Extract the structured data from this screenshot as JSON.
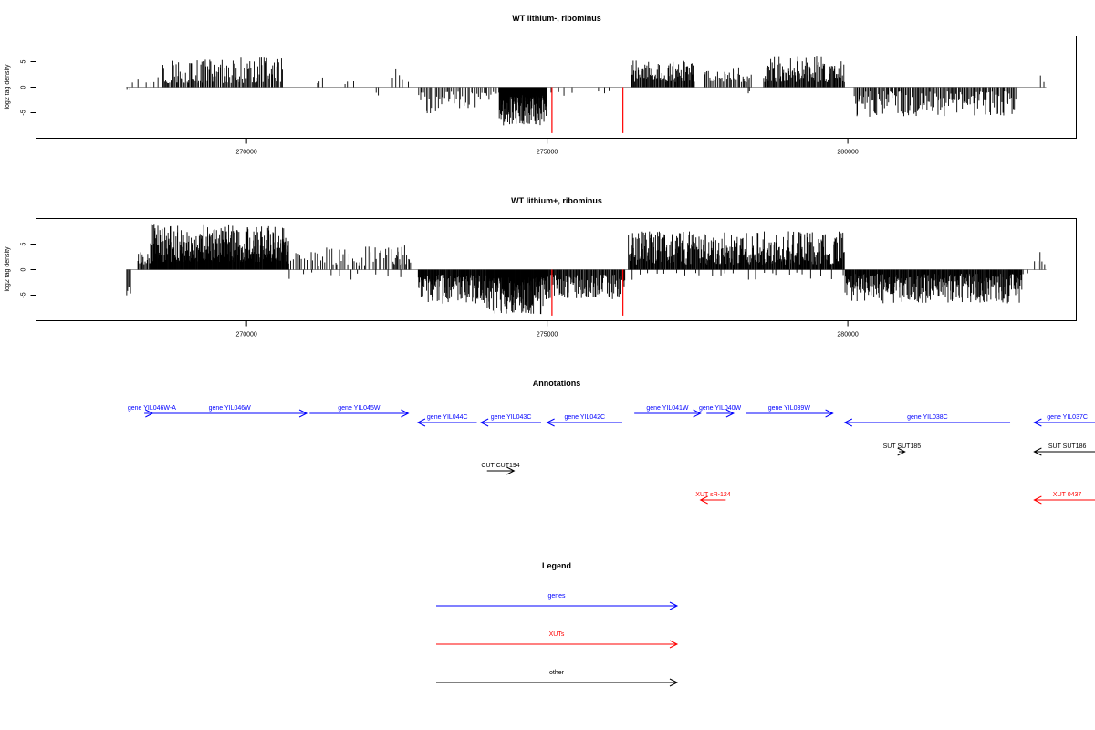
{
  "chart_data": [
    {
      "type": "bar",
      "title": "WT lithium-, ribominus",
      "xlabel": "",
      "ylabel": "log2 tag density",
      "xlim": [
        266500,
        283800
      ],
      "ylim": [
        -10,
        10
      ],
      "xticks": [
        {
          "value": 270000,
          "label": "270000"
        },
        {
          "value": 275000,
          "label": "275000"
        },
        {
          "value": 280000,
          "label": "280000"
        }
      ],
      "yticks": [
        {
          "value": -5,
          "label": "-5"
        },
        {
          "value": 0,
          "label": "0"
        },
        {
          "value": 5,
          "label": "5"
        }
      ],
      "grid": false,
      "baseline_color": "#9e9e9e",
      "bar_color": "#000000",
      "highlight_color": "#ff0000",
      "regions": [
        {
          "start": 268000,
          "end": 268100,
          "sign": -1,
          "min": 0.5,
          "max": 1.2,
          "count": 2
        },
        {
          "start": 268100,
          "end": 268600,
          "sign": 1,
          "min": 0.8,
          "max": 2.6,
          "count": 6
        },
        {
          "start": 268600,
          "end": 270600,
          "sign": 1,
          "min": 0.8,
          "max": 5.8,
          "count": 120
        },
        {
          "start": 271150,
          "end": 271300,
          "sign": 1,
          "min": 0.8,
          "max": 3.0,
          "count": 3
        },
        {
          "start": 271600,
          "end": 271800,
          "sign": 1,
          "min": 0.6,
          "max": 1.8,
          "count": 3
        },
        {
          "start": 272150,
          "end": 272200,
          "sign": -1,
          "min": 1.0,
          "max": 1.9,
          "count": 2
        },
        {
          "start": 272400,
          "end": 272700,
          "sign": 1,
          "min": 1.0,
          "max": 4.2,
          "count": 5
        },
        {
          "start": 272850,
          "end": 273600,
          "sign": -1,
          "min": 0.8,
          "max": 5.2,
          "count": 30
        },
        {
          "start": 273600,
          "end": 274200,
          "sign": -1,
          "min": 0.8,
          "max": 4.2,
          "count": 20
        },
        {
          "start": 274200,
          "end": 275000,
          "sign": -1,
          "min": 1.5,
          "max": 7.5,
          "count": 160
        },
        {
          "start": 275040,
          "end": 275450,
          "sign": -1,
          "min": 0.8,
          "max": 2.2,
          "count": 4
        },
        {
          "start": 275850,
          "end": 276100,
          "sign": -1,
          "min": 0.5,
          "max": 1.5,
          "count": 3
        },
        {
          "start": 276400,
          "end": 277450,
          "sign": 1,
          "min": 1.0,
          "max": 5.2,
          "count": 90
        },
        {
          "start": 277600,
          "end": 278000,
          "sign": 1,
          "min": 0.8,
          "max": 3.2,
          "count": 18
        },
        {
          "start": 278000,
          "end": 278400,
          "sign": 1,
          "min": 0.8,
          "max": 4.2,
          "count": 20
        },
        {
          "start": 278300,
          "end": 278400,
          "sign": -1,
          "min": 0.8,
          "max": 1.5,
          "count": 2
        },
        {
          "start": 278600,
          "end": 279950,
          "sign": 1,
          "min": 1.0,
          "max": 6.2,
          "count": 110
        },
        {
          "start": 280100,
          "end": 282800,
          "sign": -1,
          "min": 0.8,
          "max": 5.8,
          "count": 150
        },
        {
          "start": 283200,
          "end": 283300,
          "sign": 1,
          "min": 1.0,
          "max": 3.1,
          "count": 2
        }
      ],
      "highlights": [
        {
          "x": 275080,
          "value": -9.0
        },
        {
          "x": 276260,
          "value": -9.0
        }
      ]
    },
    {
      "type": "bar",
      "title": "WT lithium+, ribominus",
      "xlabel": "",
      "ylabel": "log2 tag density",
      "xlim": [
        266500,
        283800
      ],
      "ylim": [
        -10,
        10
      ],
      "xticks": [
        {
          "value": 270000,
          "label": "270000"
        },
        {
          "value": 275000,
          "label": "275000"
        },
        {
          "value": 280000,
          "label": "280000"
        }
      ],
      "yticks": [
        {
          "value": -5,
          "label": "-5"
        },
        {
          "value": 0,
          "label": "0"
        },
        {
          "value": 5,
          "label": "5"
        }
      ],
      "grid": false,
      "baseline_color": "#9e9e9e",
      "bar_color": "#000000",
      "highlight_color": "#ff0000",
      "regions": [
        {
          "start": 268000,
          "end": 268080,
          "sign": -1,
          "min": 2.0,
          "max": 5.2,
          "count": 6
        },
        {
          "start": 268180,
          "end": 268420,
          "sign": 1,
          "min": 1.0,
          "max": 3.5,
          "count": 15
        },
        {
          "start": 268400,
          "end": 270700,
          "sign": 1,
          "min": 1.5,
          "max": 8.8,
          "count": 340
        },
        {
          "start": 270700,
          "end": 272600,
          "sign": 1,
          "min": 0.8,
          "max": 4.5,
          "count": 55
        },
        {
          "start": 270700,
          "end": 272600,
          "sign": -1,
          "min": 0.5,
          "max": 2.0,
          "count": 10
        },
        {
          "start": 272400,
          "end": 272750,
          "sign": 1,
          "min": 1.0,
          "max": 5.2,
          "count": 15
        },
        {
          "start": 272850,
          "end": 274000,
          "sign": -1,
          "min": 1.0,
          "max": 6.8,
          "count": 140
        },
        {
          "start": 274000,
          "end": 275000,
          "sign": -1,
          "min": 1.5,
          "max": 8.8,
          "count": 180
        },
        {
          "start": 275000,
          "end": 276300,
          "sign": -1,
          "min": 1.0,
          "max": 5.8,
          "count": 110
        },
        {
          "start": 276350,
          "end": 279950,
          "sign": 1,
          "min": 1.0,
          "max": 7.5,
          "count": 380
        },
        {
          "start": 276350,
          "end": 279950,
          "sign": -1,
          "min": 0.5,
          "max": 2.0,
          "count": 25
        },
        {
          "start": 279950,
          "end": 282900,
          "sign": -1,
          "min": 0.8,
          "max": 6.6,
          "count": 330
        },
        {
          "start": 282900,
          "end": 283000,
          "sign": -1,
          "min": 0.5,
          "max": 1.5,
          "count": 2
        },
        {
          "start": 283100,
          "end": 283300,
          "sign": 1,
          "min": 1.0,
          "max": 4.6,
          "count": 5
        }
      ],
      "highlights": [
        {
          "x": 275080,
          "value": -9.0
        },
        {
          "x": 276260,
          "value": -9.0
        }
      ]
    }
  ],
  "annotations": {
    "title": "Annotations",
    "colors": {
      "genes": "#0000ff",
      "XUTs": "#ff0000",
      "other": "#000000"
    },
    "items": [
      {
        "label": "gene YIL046W-A",
        "start": 268300,
        "end": 268440,
        "row": 0,
        "type": "genes",
        "strand": "+",
        "label_pos": 268000
      },
      {
        "label": "gene YIL046W",
        "start": 268440,
        "end": 271000,
        "row": 0,
        "type": "genes",
        "strand": "+"
      },
      {
        "label": "gene YIL045W",
        "start": 271050,
        "end": 272690,
        "row": 0,
        "type": "genes",
        "strand": "+"
      },
      {
        "label": "gene YIL044C",
        "start": 272850,
        "end": 273830,
        "row": 1,
        "type": "genes",
        "strand": "-"
      },
      {
        "label": "gene YIL043C",
        "start": 273900,
        "end": 274900,
        "row": 1,
        "type": "genes",
        "strand": "-"
      },
      {
        "label": "gene YIL042C",
        "start": 275000,
        "end": 276250,
        "row": 1,
        "type": "genes",
        "strand": "-"
      },
      {
        "label": "gene YIL041W",
        "start": 276450,
        "end": 277550,
        "row": 0,
        "type": "genes",
        "strand": "+"
      },
      {
        "label": "gene YIL040W",
        "start": 277650,
        "end": 278100,
        "row": 0,
        "type": "genes",
        "strand": "+"
      },
      {
        "label": "gene YIL039W",
        "start": 278300,
        "end": 279750,
        "row": 0,
        "type": "genes",
        "strand": "+"
      },
      {
        "label": "gene YIL038C",
        "start": 279950,
        "end": 282700,
        "row": 1,
        "type": "genes",
        "strand": "-"
      },
      {
        "label": "gene YIL037C",
        "start": 283100,
        "end": 284200,
        "row": 1,
        "type": "genes",
        "strand": "-"
      },
      {
        "label": "SUT SUT185",
        "start": 280850,
        "end": 280950,
        "row": 3,
        "type": "other",
        "strand": "+"
      },
      {
        "label": "SUT SUT186",
        "start": 283100,
        "end": 284200,
        "row": 3,
        "type": "other",
        "strand": "-"
      },
      {
        "label": "CUT CUT194",
        "start": 274000,
        "end": 274450,
        "row": 4,
        "type": "other",
        "strand": "+"
      },
      {
        "label": "XUT sR-124",
        "start": 277550,
        "end": 277970,
        "row": 5,
        "type": "XUTs",
        "strand": "-"
      },
      {
        "label": "XUT 0437",
        "start": 283100,
        "end": 284200,
        "row": 5,
        "type": "XUTs",
        "strand": "-"
      }
    ]
  },
  "legend": {
    "title": "Legend",
    "items": [
      {
        "label": "genes",
        "color": "#0000ff"
      },
      {
        "label": "XUTs",
        "color": "#ff0000"
      },
      {
        "label": "other",
        "color": "#000000"
      }
    ]
  }
}
